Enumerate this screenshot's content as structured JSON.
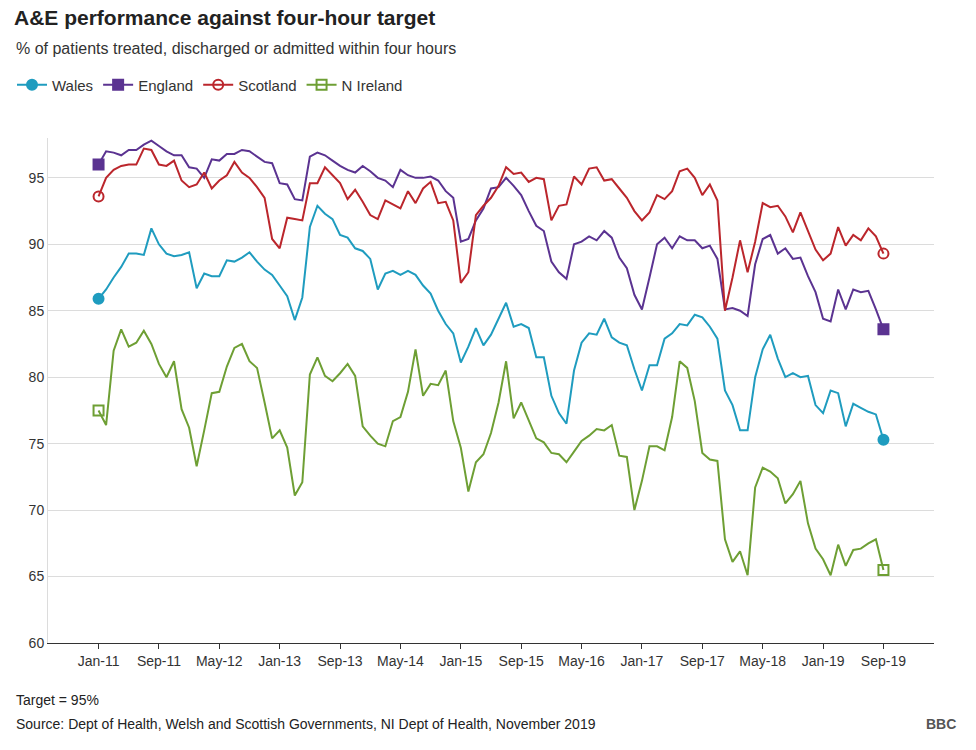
{
  "chart_data": {
    "type": "line",
    "title": "A&E performance against four-hour target",
    "subtitle": "% of patients treated, discharged or admitted within four hours",
    "categories": [
      "Jan-11",
      null,
      null,
      null,
      null,
      null,
      null,
      null,
      "Sep-11",
      null,
      null,
      null,
      null,
      null,
      null,
      null,
      "May-12",
      null,
      null,
      null,
      null,
      null,
      null,
      null,
      "Jan-13",
      null,
      null,
      null,
      null,
      null,
      null,
      null,
      "Sep-13",
      null,
      null,
      null,
      null,
      null,
      null,
      null,
      "May-14",
      null,
      null,
      null,
      null,
      null,
      null,
      null,
      "Jan-15",
      null,
      null,
      null,
      null,
      null,
      null,
      null,
      "Sep-15",
      null,
      null,
      null,
      null,
      null,
      null,
      null,
      "May-16",
      null,
      null,
      null,
      null,
      null,
      null,
      null,
      "Jan-17",
      null,
      null,
      null,
      null,
      null,
      null,
      null,
      "Sep-17",
      null,
      null,
      null,
      null,
      null,
      null,
      null,
      "May-18",
      null,
      null,
      null,
      null,
      null,
      null,
      null,
      "Jan-19",
      null,
      null,
      null,
      null,
      null,
      null,
      null,
      "Sep-19"
    ],
    "series": [
      {
        "name": "Wales",
        "color": "#1f9cbf",
        "marker": "circle",
        "values": [
          85.9,
          86.6,
          87.5,
          88.3,
          89.3,
          89.3,
          89.2,
          91.2,
          90.0,
          89.3,
          89.1,
          89.2,
          89.4,
          86.7,
          87.8,
          87.6,
          87.6,
          88.8,
          88.7,
          89.0,
          89.4,
          88.7,
          88.1,
          87.7,
          86.9,
          86.1,
          84.3,
          86.0,
          91.3,
          92.9,
          92.3,
          91.9,
          90.7,
          90.5,
          89.7,
          89.5,
          88.9,
          86.6,
          87.8,
          88.0,
          87.7,
          88.0,
          87.7,
          86.9,
          86.3,
          85.0,
          84.0,
          83.3,
          81.1,
          82.3,
          83.7,
          82.4,
          83.2,
          84.4,
          85.6,
          83.8,
          84.0,
          83.7,
          81.5,
          81.5,
          78.6,
          77.3,
          76.5,
          80.5,
          82.6,
          83.3,
          83.2,
          84.4,
          83.0,
          82.6,
          82.4,
          80.6,
          79.0,
          80.9,
          80.9,
          82.9,
          83.3,
          84.0,
          83.9,
          84.7,
          84.5,
          83.8,
          82.9,
          79.0,
          77.9,
          76.0,
          76.0,
          80.0,
          82.1,
          83.2,
          81.4,
          80.0,
          80.3,
          80.0,
          80.1,
          77.9,
          77.3,
          79.0,
          78.8,
          76.3,
          78.0,
          77.7,
          77.4,
          77.2,
          75.3
        ]
      },
      {
        "name": "England",
        "color": "#5b3391",
        "marker": "square",
        "values": [
          96.0,
          97.0,
          96.9,
          96.7,
          97.1,
          97.1,
          97.5,
          97.8,
          97.4,
          97.0,
          96.7,
          96.7,
          95.8,
          95.7,
          95.0,
          96.4,
          96.3,
          96.8,
          96.8,
          97.1,
          97.0,
          96.6,
          96.2,
          96.1,
          94.6,
          94.5,
          93.4,
          93.3,
          96.6,
          96.9,
          96.7,
          96.3,
          95.9,
          95.6,
          95.4,
          95.9,
          95.5,
          95.0,
          94.8,
          94.3,
          95.6,
          95.2,
          95.0,
          95.0,
          95.1,
          94.8,
          94.0,
          93.5,
          90.2,
          90.4,
          91.8,
          92.7,
          94.2,
          94.3,
          95.0,
          94.4,
          93.7,
          92.5,
          91.4,
          91.0,
          88.7,
          87.9,
          87.4,
          90.0,
          90.2,
          90.6,
          90.3,
          91.0,
          90.5,
          89.0,
          88.2,
          86.2,
          85.1,
          87.5,
          90.0,
          90.5,
          89.7,
          90.6,
          90.3,
          90.3,
          89.7,
          89.9,
          88.9,
          85.1,
          85.2,
          85.0,
          84.6,
          88.5,
          90.4,
          90.7,
          89.3,
          89.7,
          88.9,
          89.0,
          87.6,
          86.4,
          84.4,
          84.2,
          86.6,
          85.1,
          86.6,
          86.4,
          86.5,
          85.1,
          83.6
        ]
      },
      {
        "name": "Scotland",
        "color": "#bb262c",
        "marker": "circle-open",
        "values": [
          93.6,
          95.0,
          95.6,
          95.9,
          96.0,
          96.0,
          97.2,
          97.1,
          96.0,
          95.9,
          96.3,
          94.8,
          94.3,
          94.5,
          95.4,
          94.2,
          94.8,
          95.2,
          96.2,
          95.4,
          95.0,
          94.3,
          93.5,
          90.4,
          89.7,
          92.0,
          91.9,
          91.8,
          94.6,
          94.6,
          95.8,
          95.2,
          94.6,
          93.4,
          94.1,
          93.2,
          92.2,
          91.9,
          93.3,
          93.0,
          92.7,
          94.0,
          93.1,
          94.2,
          94.7,
          93.1,
          93.2,
          91.8,
          87.1,
          87.9,
          92.2,
          92.9,
          93.5,
          94.4,
          95.8,
          95.3,
          95.4,
          94.7,
          95.0,
          94.9,
          91.8,
          92.9,
          93.0,
          95.1,
          94.5,
          95.7,
          95.8,
          94.8,
          94.9,
          94.2,
          93.5,
          92.5,
          91.8,
          92.4,
          93.7,
          93.4,
          94.0,
          95.5,
          95.7,
          95.0,
          93.7,
          94.5,
          93.3,
          85.0,
          87.5,
          90.3,
          87.9,
          90.2,
          93.1,
          92.8,
          92.9,
          92.1,
          90.9,
          92.4,
          91.0,
          89.6,
          88.8,
          89.3,
          91.3,
          89.9,
          90.7,
          90.3,
          91.2,
          90.6,
          89.3
        ]
      },
      {
        "name": "N Ireland",
        "color": "#6e9f34",
        "marker": "square-open",
        "values": [
          77.5,
          76.4,
          82.0,
          83.6,
          82.3,
          82.6,
          83.5,
          82.5,
          81.0,
          80.0,
          81.2,
          77.6,
          76.2,
          73.3,
          76.0,
          78.8,
          78.9,
          80.8,
          82.2,
          82.5,
          81.2,
          80.7,
          78.1,
          75.4,
          76.0,
          74.7,
          71.1,
          72.1,
          80.2,
          81.5,
          80.1,
          79.7,
          80.3,
          81.0,
          80.1,
          76.3,
          75.6,
          75.0,
          74.8,
          76.7,
          77.0,
          78.9,
          82.1,
          78.6,
          79.5,
          79.4,
          80.5,
          76.7,
          74.7,
          71.4,
          73.6,
          74.2,
          75.8,
          78.1,
          81.2,
          76.9,
          78.1,
          76.8,
          75.4,
          75.1,
          74.3,
          74.2,
          73.6,
          74.4,
          75.2,
          75.6,
          76.1,
          76.0,
          76.4,
          74.1,
          74.0,
          70.0,
          72.2,
          74.8,
          74.8,
          74.5,
          77.0,
          81.2,
          80.7,
          78.2,
          74.3,
          73.8,
          73.7,
          67.8,
          66.1,
          66.9,
          65.1,
          71.7,
          73.2,
          72.9,
          72.4,
          70.5,
          71.2,
          72.2,
          69.0,
          67.1,
          66.3,
          65.1,
          67.4,
          65.8,
          67.0,
          67.1,
          67.5,
          67.8,
          65.5
        ]
      }
    ],
    "ylim": [
      60,
      98
    ],
    "yticks": [
      60,
      65,
      70,
      75,
      80,
      85,
      90,
      95
    ],
    "grid": true,
    "legend": "top-left",
    "footnote": "Target = 95%",
    "source": "Source: Dept of Health, Welsh and Scottish Governments, NI Dept of Health, November 2019",
    "credit": "BBC"
  }
}
